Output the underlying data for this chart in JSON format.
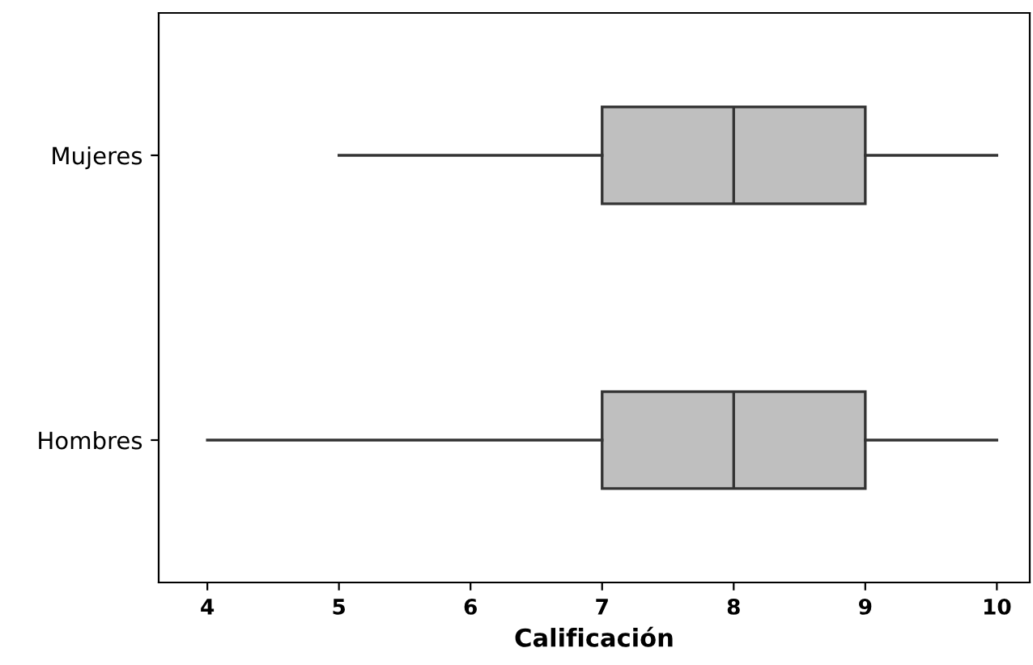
{
  "chart_data": {
    "type": "box",
    "orientation": "horizontal",
    "xlabel": "Calificación",
    "categories": [
      "Mujeres",
      "Hombres"
    ],
    "series": [
      {
        "color": "#bfbfbf",
        "boxes": [
          {
            "low": 5,
            "q1": 7,
            "median": 8,
            "q3": 9,
            "high": 10
          },
          {
            "low": 4,
            "q1": 7,
            "median": 8,
            "q3": 9,
            "high": 10
          }
        ]
      }
    ],
    "xlim": [
      3.63,
      10.25
    ],
    "xticks": [
      4,
      5,
      6,
      7,
      8,
      9,
      10
    ]
  }
}
